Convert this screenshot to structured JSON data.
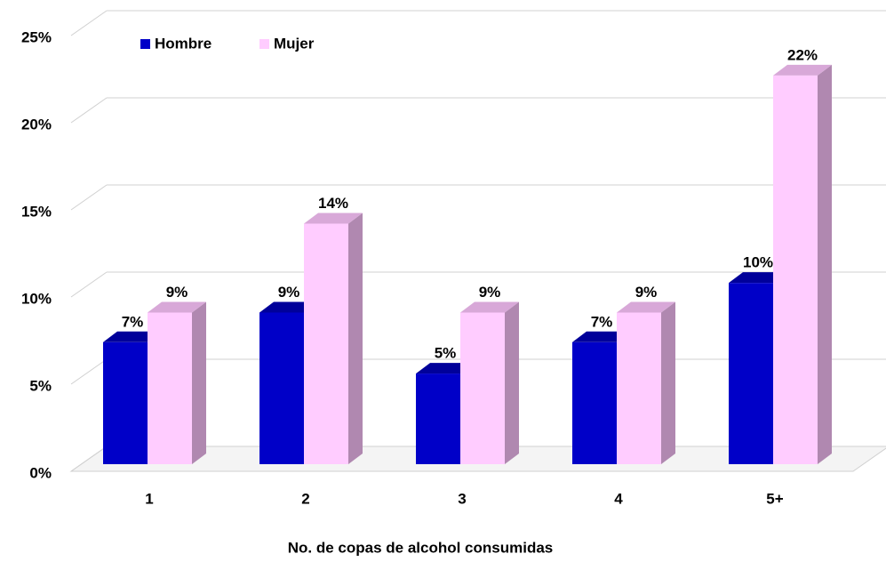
{
  "chart_data": {
    "type": "bar3d",
    "x_label": "No. de copas  de alcohol consumidas",
    "categories": [
      "1",
      "2",
      "3",
      "4",
      "5+"
    ],
    "series": [
      {
        "name": "Hombre",
        "color": "#0000c8",
        "values": [
          7.0,
          8.7,
          5.2,
          7.0,
          10.4
        ],
        "value_labels": [
          "7%",
          "9%",
          "5%",
          "7%",
          "10%"
        ]
      },
      {
        "name": "Mujer",
        "color": "#ffccff",
        "values": [
          8.7,
          13.8,
          8.7,
          8.7,
          22.3
        ],
        "value_labels": [
          "9%",
          "14%",
          "9%",
          "9%",
          "22%"
        ]
      }
    ],
    "ylim": [
      0,
      25
    ],
    "yticks": [
      {
        "value": 0,
        "label": "0%"
      },
      {
        "value": 5,
        "label": "5%"
      },
      {
        "value": 10,
        "label": "10%"
      },
      {
        "value": 15,
        "label": "15%"
      },
      {
        "value": 20,
        "label": "20%"
      },
      {
        "value": 25,
        "label": "25%"
      }
    ],
    "grid": true,
    "legend": "top-left"
  }
}
